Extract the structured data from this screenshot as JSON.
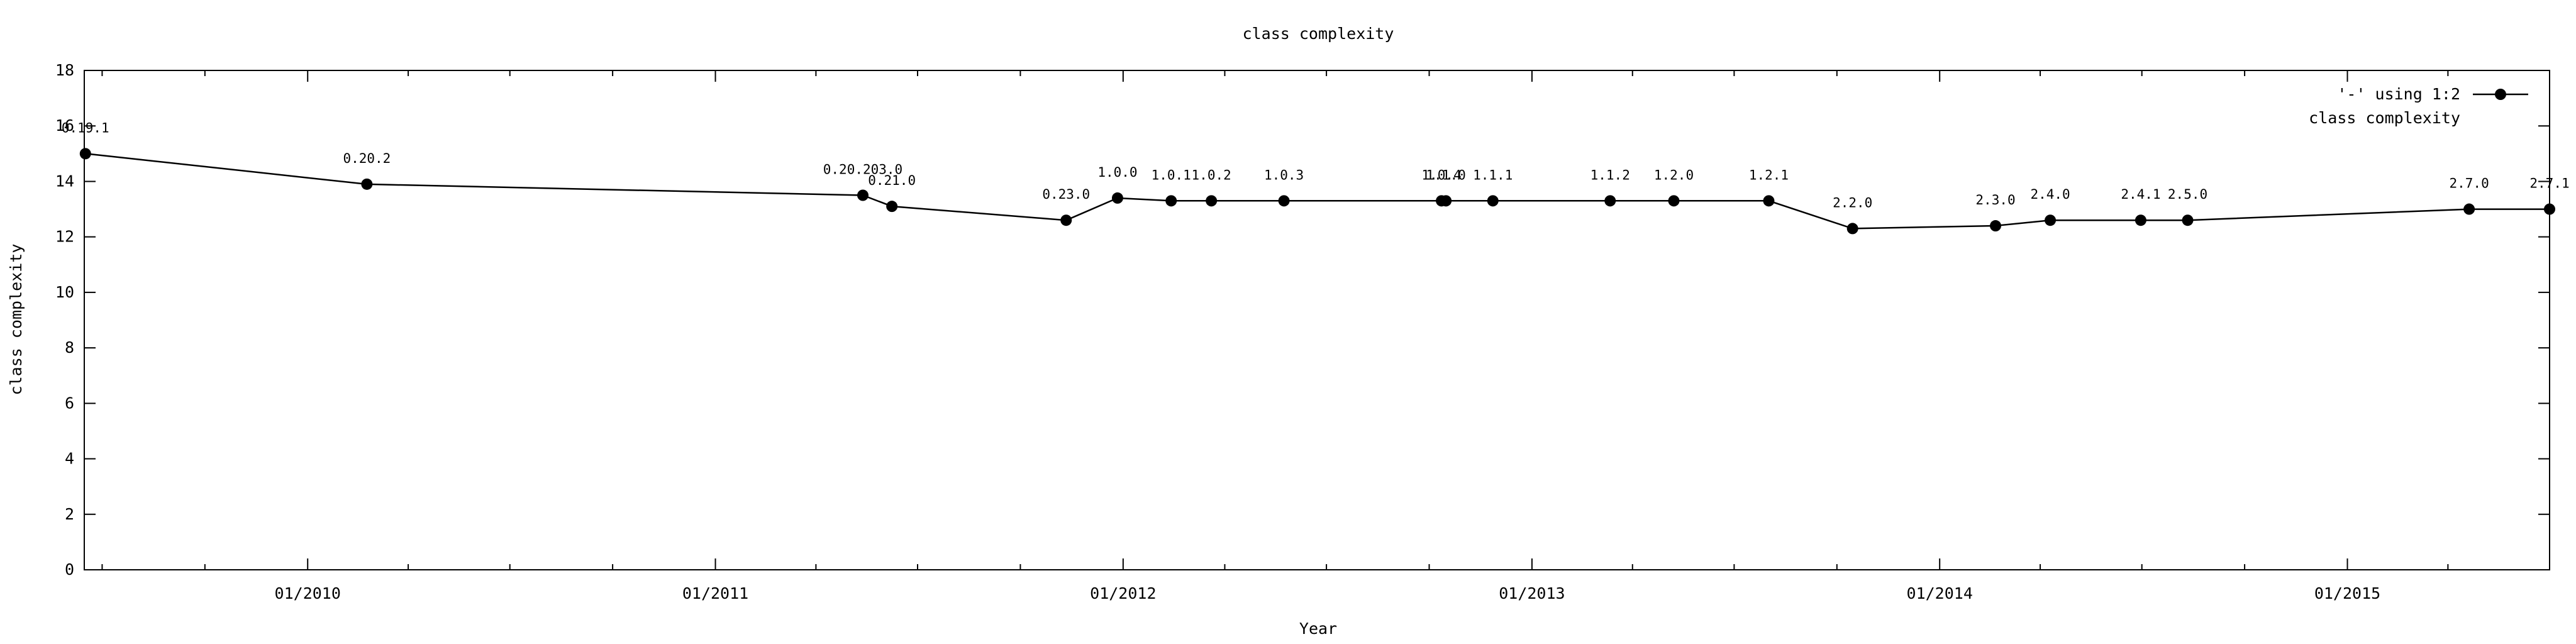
{
  "chart_data": {
    "type": "line",
    "title": "class complexity",
    "xlabel": "Year",
    "ylabel": "class complexity",
    "x_type": "date",
    "xlim": [
      "2009-06-15",
      "2015-07-01"
    ],
    "ylim": [
      0,
      18
    ],
    "y_ticks": [
      0,
      2,
      4,
      6,
      8,
      10,
      12,
      14,
      16,
      18
    ],
    "x_ticks": [
      {
        "date": "2010-01-01",
        "label": "01/2010"
      },
      {
        "date": "2011-01-01",
        "label": "01/2011"
      },
      {
        "date": "2012-01-01",
        "label": "01/2012"
      },
      {
        "date": "2013-01-01",
        "label": "01/2013"
      },
      {
        "date": "2014-01-01",
        "label": "01/2014"
      },
      {
        "date": "2015-01-01",
        "label": "01/2015"
      }
    ],
    "grid": false,
    "legend": {
      "position": "top-right",
      "entries": [
        "'-' using 1:2",
        "class complexity"
      ]
    },
    "series": [
      {
        "name": "'-' using 1:2",
        "color": "#000000",
        "points": [
          {
            "x": "2009-06-16",
            "y": 15.0,
            "label": "0.19.1"
          },
          {
            "x": "2010-02-23",
            "y": 13.9,
            "label": "0.20.2"
          },
          {
            "x": "2011-05-13",
            "y": 13.5,
            "label": "0.20.203.0"
          },
          {
            "x": "2011-06-08",
            "y": 13.1,
            "label": "0.21.0"
          },
          {
            "x": "2011-11-11",
            "y": 12.6,
            "label": "0.23.0"
          },
          {
            "x": "2011-12-27",
            "y": 13.4,
            "label": "1.0.0"
          },
          {
            "x": "2012-02-13",
            "y": 13.3,
            "label": "1.0.1"
          },
          {
            "x": "2012-03-20",
            "y": 13.3,
            "label": "1.0.2"
          },
          {
            "x": "2012-05-24",
            "y": 13.3,
            "label": "1.0.3"
          },
          {
            "x": "2012-10-12",
            "y": 13.3,
            "label": "1.0.4"
          },
          {
            "x": "2012-10-16",
            "y": 13.3,
            "label": "1.1.0"
          },
          {
            "x": "2012-11-27",
            "y": 13.3,
            "label": "1.1.1"
          },
          {
            "x": "2013-03-12",
            "y": 13.3,
            "label": "1.1.2"
          },
          {
            "x": "2013-05-08",
            "y": 13.3,
            "label": "1.2.0"
          },
          {
            "x": "2013-08-01",
            "y": 13.3,
            "label": "1.2.1"
          },
          {
            "x": "2013-10-15",
            "y": 12.3,
            "label": "2.2.0"
          },
          {
            "x": "2014-02-20",
            "y": 12.4,
            "label": "2.3.0"
          },
          {
            "x": "2014-04-10",
            "y": 12.6,
            "label": "2.4.0"
          },
          {
            "x": "2014-06-30",
            "y": 12.6,
            "label": "2.4.1"
          },
          {
            "x": "2014-08-11",
            "y": 12.6,
            "label": "2.5.0"
          },
          {
            "x": "2015-04-20",
            "y": 13.0,
            "label": "2.7.0"
          },
          {
            "x": "2015-07-01",
            "y": 13.0,
            "label": "2.7.1"
          }
        ]
      }
    ]
  }
}
